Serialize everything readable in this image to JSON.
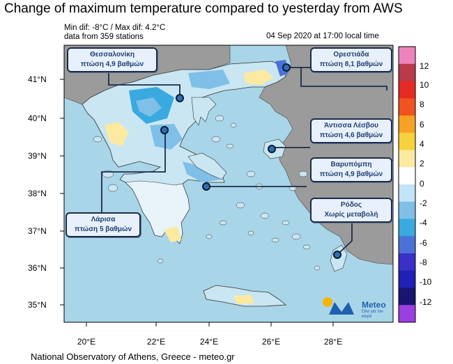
{
  "title": "Change of maximum temperature compared to yesterday from AWS",
  "info": {
    "minmax": "Min dif: -8°C / Max dif: 4.2°C",
    "stations": "data from 359 stations",
    "datetime": "04 Sep 2020 at 17:00 local time"
  },
  "footer": "National Observatory of Athens, Greece - meteo.gr",
  "axes": {
    "lat_labels": [
      "41°N",
      "40°N",
      "39°N",
      "38°N",
      "37°N",
      "36°N",
      "35°N"
    ],
    "lon_labels": [
      "20°E",
      "22°E",
      "24°E",
      "26°E",
      "28°E"
    ]
  },
  "colorbar": {
    "labels": [
      "12",
      "10",
      "8",
      "6",
      "4",
      "2",
      "0",
      "-2",
      "-4",
      "-6",
      "-8",
      "-10",
      "-12"
    ],
    "colors": [
      "#ee82bd",
      "#b83a4b",
      "#e42a23",
      "#f0531f",
      "#f7a224",
      "#f6d33e",
      "#fbeaa0",
      "#ffffff",
      "#c3e3f6",
      "#7fbfe8",
      "#39a9e0",
      "#4a72d6",
      "#3b2fc7",
      "#2020b8",
      "#1a1570",
      "#9c3fe0"
    ]
  },
  "callouts": [
    {
      "id": "thessaloniki",
      "line1": "Θεσσαλονίκη",
      "line2": "πτώση 4,9 βαθμών"
    },
    {
      "id": "orestiada",
      "line1": "Ορεστιάδα",
      "line2": "πτώση 8,1 βαθμών"
    },
    {
      "id": "antissa",
      "line1": "Άντισσα Λέσβου",
      "line2": "πτώση 4,6 βαθμών"
    },
    {
      "id": "varybompi",
      "line1": "Βαρυπόμπη",
      "line2": "πτώση 4,9 βαθμών"
    },
    {
      "id": "rodos",
      "line1": "Ρόδος",
      "line2": "Χωρίς μεταβολή"
    },
    {
      "id": "larisa",
      "line1": "Λάρισα",
      "line2": "πτώση 5 βαθμών"
    }
  ],
  "logo": {
    "name": "Meteo",
    "tagline": "Όλα για τον καιρό"
  },
  "colors": {
    "sea": "#a9d5e8",
    "land_other": "#9b9b9b",
    "callout_bg": "#e8f1fb",
    "callout_border": "#1b2c4a"
  }
}
